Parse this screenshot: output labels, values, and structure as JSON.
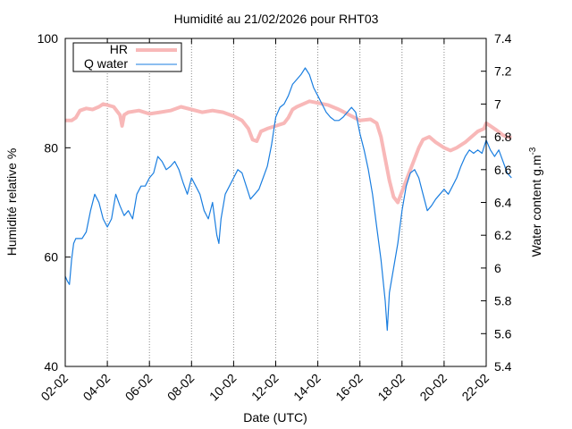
{
  "chart_data": {
    "type": "line",
    "title": "Humidité au 21/02/2026 pour RHT03",
    "xlabel": "Date (UTC)",
    "ylabel": "Humidité relative %",
    "y2label_base": "Water content g.m",
    "y2label_sup": "-3",
    "x_ticks": [
      "02-02",
      "04-02",
      "06-02",
      "08-02",
      "10-02",
      "12-02",
      "14-02",
      "16-02",
      "18-02",
      "20-02",
      "22-02"
    ],
    "x_range_days": [
      0,
      20
    ],
    "ylim": [
      40,
      100
    ],
    "y_ticks": [
      "40",
      "60",
      "80",
      "100"
    ],
    "y2lim": [
      5.4,
      7.4
    ],
    "y2_ticks": [
      "5.4",
      "5.6",
      "5.8",
      "6",
      "6.2",
      "6.4",
      "6.6",
      "6.8",
      "7",
      "7.2",
      "7.4"
    ],
    "grid": "vertical dotted at x ticks",
    "legend_position": "top-left",
    "series": [
      {
        "name": "HR",
        "axis": "left",
        "color": "#f8b8b8",
        "points": [
          [
            0.0,
            85.0
          ],
          [
            0.3,
            85.0
          ],
          [
            0.5,
            85.5
          ],
          [
            0.7,
            86.8
          ],
          [
            1.0,
            87.2
          ],
          [
            1.3,
            87.0
          ],
          [
            1.6,
            87.5
          ],
          [
            1.8,
            88.0
          ],
          [
            2.0,
            87.8
          ],
          [
            2.3,
            87.5
          ],
          [
            2.5,
            86.5
          ],
          [
            2.6,
            86.0
          ],
          [
            2.7,
            84.0
          ],
          [
            2.8,
            86.0
          ],
          [
            3.0,
            86.5
          ],
          [
            3.5,
            86.8
          ],
          [
            4.0,
            86.2
          ],
          [
            4.5,
            86.5
          ],
          [
            5.0,
            86.8
          ],
          [
            5.5,
            87.5
          ],
          [
            6.0,
            87.0
          ],
          [
            6.5,
            86.5
          ],
          [
            7.0,
            86.8
          ],
          [
            7.5,
            86.5
          ],
          [
            8.0,
            85.8
          ],
          [
            8.4,
            85.0
          ],
          [
            8.7,
            83.5
          ],
          [
            8.9,
            81.5
          ],
          [
            9.1,
            81.2
          ],
          [
            9.3,
            83.0
          ],
          [
            9.6,
            83.5
          ],
          [
            10.0,
            84.0
          ],
          [
            10.4,
            84.5
          ],
          [
            10.6,
            85.5
          ],
          [
            10.8,
            87.0
          ],
          [
            11.0,
            87.5
          ],
          [
            11.3,
            88.0
          ],
          [
            11.6,
            88.5
          ],
          [
            12.0,
            88.2
          ],
          [
            12.5,
            87.8
          ],
          [
            13.0,
            87.0
          ],
          [
            13.5,
            86.0
          ],
          [
            14.0,
            85.0
          ],
          [
            14.5,
            85.2
          ],
          [
            14.8,
            84.5
          ],
          [
            15.0,
            82.0
          ],
          [
            15.2,
            78.0
          ],
          [
            15.4,
            74.0
          ],
          [
            15.6,
            71.0
          ],
          [
            15.8,
            70.0
          ],
          [
            16.0,
            72.0
          ],
          [
            16.2,
            74.0
          ],
          [
            16.4,
            76.0
          ],
          [
            16.6,
            78.0
          ],
          [
            16.8,
            80.0
          ],
          [
            17.0,
            81.5
          ],
          [
            17.3,
            82.0
          ],
          [
            17.6,
            81.0
          ],
          [
            18.0,
            80.0
          ],
          [
            18.3,
            79.5
          ],
          [
            18.6,
            80.0
          ],
          [
            19.0,
            81.0
          ],
          [
            19.3,
            82.0
          ],
          [
            19.6,
            83.0
          ],
          [
            19.9,
            83.5
          ],
          [
            20.0,
            84.5
          ],
          [
            20.2,
            84.0
          ],
          [
            20.5,
            83.2
          ],
          [
            20.8,
            82.3
          ],
          [
            21.0,
            82.0
          ],
          [
            21.2,
            81.8
          ]
        ]
      },
      {
        "name": "Q water",
        "axis": "right",
        "color": "#1a7ee0",
        "points": [
          [
            0.0,
            5.95
          ],
          [
            0.1,
            5.92
          ],
          [
            0.2,
            5.9
          ],
          [
            0.3,
            6.05
          ],
          [
            0.4,
            6.15
          ],
          [
            0.5,
            6.18
          ],
          [
            0.8,
            6.18
          ],
          [
            1.0,
            6.22
          ],
          [
            1.2,
            6.35
          ],
          [
            1.4,
            6.45
          ],
          [
            1.6,
            6.4
          ],
          [
            1.8,
            6.3
          ],
          [
            2.0,
            6.25
          ],
          [
            2.2,
            6.3
          ],
          [
            2.4,
            6.45
          ],
          [
            2.6,
            6.38
          ],
          [
            2.8,
            6.32
          ],
          [
            3.0,
            6.35
          ],
          [
            3.2,
            6.3
          ],
          [
            3.4,
            6.45
          ],
          [
            3.6,
            6.5
          ],
          [
            3.8,
            6.5
          ],
          [
            4.0,
            6.55
          ],
          [
            4.2,
            6.58
          ],
          [
            4.4,
            6.68
          ],
          [
            4.6,
            6.65
          ],
          [
            4.8,
            6.6
          ],
          [
            5.0,
            6.62
          ],
          [
            5.2,
            6.65
          ],
          [
            5.4,
            6.6
          ],
          [
            5.6,
            6.52
          ],
          [
            5.8,
            6.45
          ],
          [
            6.0,
            6.55
          ],
          [
            6.2,
            6.5
          ],
          [
            6.4,
            6.45
          ],
          [
            6.6,
            6.35
          ],
          [
            6.8,
            6.3
          ],
          [
            7.0,
            6.4
          ],
          [
            7.2,
            6.2
          ],
          [
            7.3,
            6.15
          ],
          [
            7.4,
            6.3
          ],
          [
            7.6,
            6.45
          ],
          [
            7.8,
            6.5
          ],
          [
            8.0,
            6.55
          ],
          [
            8.2,
            6.6
          ],
          [
            8.4,
            6.58
          ],
          [
            8.6,
            6.5
          ],
          [
            8.8,
            6.42
          ],
          [
            9.0,
            6.45
          ],
          [
            9.2,
            6.48
          ],
          [
            9.4,
            6.55
          ],
          [
            9.6,
            6.62
          ],
          [
            9.8,
            6.75
          ],
          [
            10.0,
            6.92
          ],
          [
            10.2,
            6.98
          ],
          [
            10.4,
            7.0
          ],
          [
            10.6,
            7.05
          ],
          [
            10.8,
            7.12
          ],
          [
            11.0,
            7.15
          ],
          [
            11.2,
            7.18
          ],
          [
            11.4,
            7.22
          ],
          [
            11.6,
            7.18
          ],
          [
            11.8,
            7.1
          ],
          [
            12.0,
            7.05
          ],
          [
            12.2,
            7.0
          ],
          [
            12.4,
            6.95
          ],
          [
            12.6,
            6.92
          ],
          [
            12.8,
            6.9
          ],
          [
            13.0,
            6.9
          ],
          [
            13.2,
            6.92
          ],
          [
            13.4,
            6.95
          ],
          [
            13.6,
            6.98
          ],
          [
            13.8,
            6.95
          ],
          [
            14.0,
            6.82
          ],
          [
            14.2,
            6.72
          ],
          [
            14.4,
            6.6
          ],
          [
            14.6,
            6.45
          ],
          [
            14.8,
            6.25
          ],
          [
            15.0,
            6.05
          ],
          [
            15.2,
            5.8
          ],
          [
            15.3,
            5.62
          ],
          [
            15.4,
            5.85
          ],
          [
            15.6,
            6.0
          ],
          [
            15.8,
            6.15
          ],
          [
            16.0,
            6.35
          ],
          [
            16.2,
            6.5
          ],
          [
            16.4,
            6.58
          ],
          [
            16.6,
            6.6
          ],
          [
            16.8,
            6.55
          ],
          [
            17.0,
            6.45
          ],
          [
            17.2,
            6.35
          ],
          [
            17.4,
            6.38
          ],
          [
            17.6,
            6.42
          ],
          [
            17.8,
            6.45
          ],
          [
            18.0,
            6.48
          ],
          [
            18.2,
            6.45
          ],
          [
            18.4,
            6.5
          ],
          [
            18.6,
            6.55
          ],
          [
            18.8,
            6.62
          ],
          [
            19.0,
            6.68
          ],
          [
            19.2,
            6.72
          ],
          [
            19.4,
            6.7
          ],
          [
            19.6,
            6.72
          ],
          [
            19.8,
            6.7
          ],
          [
            20.0,
            6.78
          ],
          [
            20.2,
            6.72
          ],
          [
            20.4,
            6.68
          ],
          [
            20.6,
            6.72
          ],
          [
            20.8,
            6.65
          ],
          [
            21.0,
            6.58
          ],
          [
            21.2,
            6.55
          ]
        ]
      }
    ]
  }
}
